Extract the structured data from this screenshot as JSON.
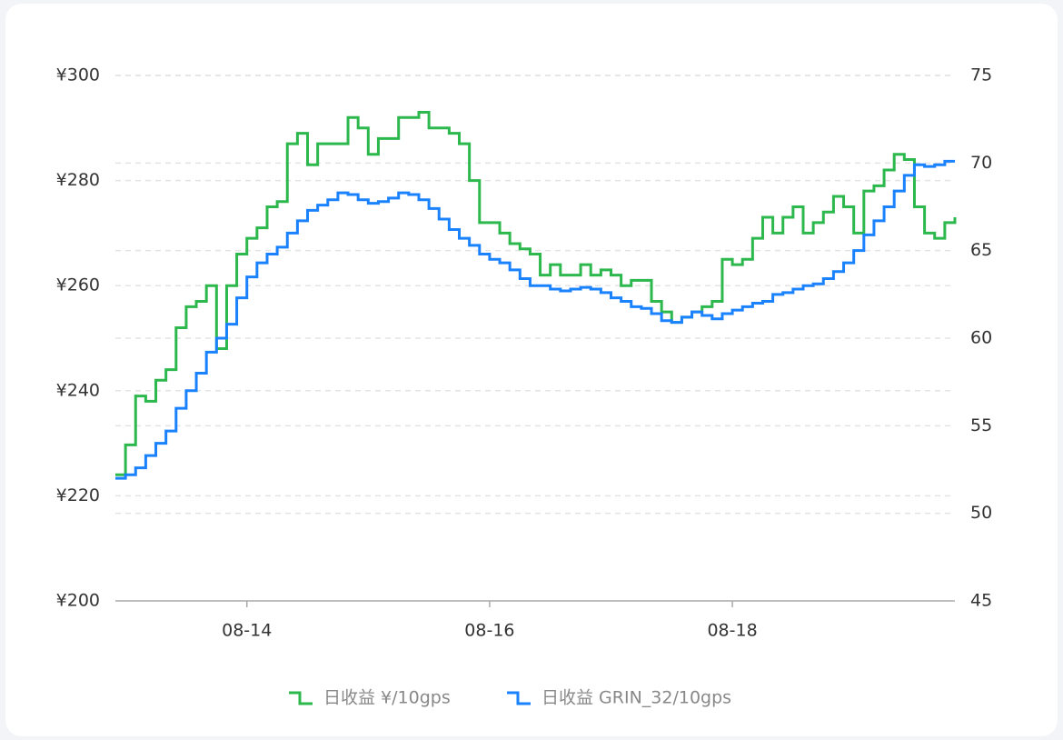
{
  "chart_data": {
    "type": "line",
    "step": true,
    "categories": [
      null,
      null,
      null,
      null,
      null,
      null,
      null,
      null,
      null,
      null,
      null,
      null,
      null,
      "08-14",
      null,
      null,
      null,
      null,
      null,
      null,
      null,
      null,
      null,
      null,
      null,
      null,
      null,
      null,
      null,
      null,
      null,
      null,
      null,
      null,
      null,
      null,
      null,
      "08-16",
      null,
      null,
      null,
      null,
      null,
      null,
      null,
      null,
      null,
      null,
      null,
      null,
      null,
      null,
      null,
      null,
      null,
      null,
      null,
      null,
      null,
      null,
      null,
      "08-18",
      null,
      null,
      null,
      null,
      null,
      null,
      null,
      null,
      null,
      null,
      null,
      null,
      null,
      null,
      null,
      null,
      null,
      null,
      null,
      null,
      null,
      null
    ],
    "series": [
      {
        "name": "日收益 ¥/10gps",
        "color": "#2db84d",
        "axis": "y",
        "values": [
          224,
          229.7,
          239,
          238,
          242,
          244,
          252,
          256,
          257,
          260,
          248,
          260,
          266,
          269,
          271,
          275,
          276,
          287,
          289,
          283,
          287,
          287,
          287,
          292,
          290,
          285,
          288,
          288,
          292,
          292,
          293,
          290,
          290,
          289,
          287,
          280,
          272,
          272,
          270,
          268,
          267,
          266,
          262,
          264,
          262,
          262,
          264,
          262,
          263,
          262,
          260,
          261,
          261,
          257,
          255,
          253,
          254,
          255,
          256,
          257,
          265,
          264,
          265,
          269,
          273,
          270,
          273,
          275,
          270,
          272,
          274,
          277,
          275,
          270,
          278,
          279,
          282,
          285,
          284,
          275,
          270,
          269,
          272,
          273
        ]
      },
      {
        "name": "日收益 GRIN_32/10gps",
        "color": "#1a82ff",
        "axis": "y2",
        "values": [
          52,
          52.2,
          52.6,
          53.3,
          54,
          54.7,
          56,
          57,
          58,
          59.2,
          60,
          60.8,
          62.3,
          63.5,
          64.3,
          64.8,
          65.2,
          66,
          66.7,
          67.3,
          67.6,
          67.9,
          68.3,
          68.2,
          67.9,
          67.7,
          67.8,
          68,
          68.3,
          68.2,
          67.9,
          67.4,
          66.8,
          66.2,
          65.7,
          65.3,
          64.8,
          64.5,
          64.3,
          63.9,
          63.4,
          63,
          63,
          62.8,
          62.7,
          62.8,
          62.9,
          62.8,
          62.6,
          62.3,
          62.1,
          61.8,
          61.7,
          61.4,
          61,
          60.9,
          61.2,
          61.5,
          61.3,
          61.1,
          61.4,
          61.6,
          61.8,
          62,
          62.1,
          62.5,
          62.6,
          62.8,
          63,
          63.1,
          63.4,
          63.8,
          64.3,
          65,
          65.9,
          66.7,
          67.5,
          68.4,
          69.3,
          69.9,
          69.8,
          69.9,
          70.1,
          70.1
        ]
      }
    ],
    "ylim": [
      200,
      300
    ],
    "yticks": [
      {
        "value": 200,
        "label": "¥200"
      },
      {
        "value": 220,
        "label": "¥220"
      },
      {
        "value": 240,
        "label": "¥240"
      },
      {
        "value": 260,
        "label": "¥260"
      },
      {
        "value": 280,
        "label": "¥280"
      },
      {
        "value": 300,
        "label": "¥300"
      }
    ],
    "y2lim": [
      45,
      75
    ],
    "y2ticks": [
      45,
      50,
      55,
      60,
      65,
      70,
      75
    ],
    "grid": true
  }
}
